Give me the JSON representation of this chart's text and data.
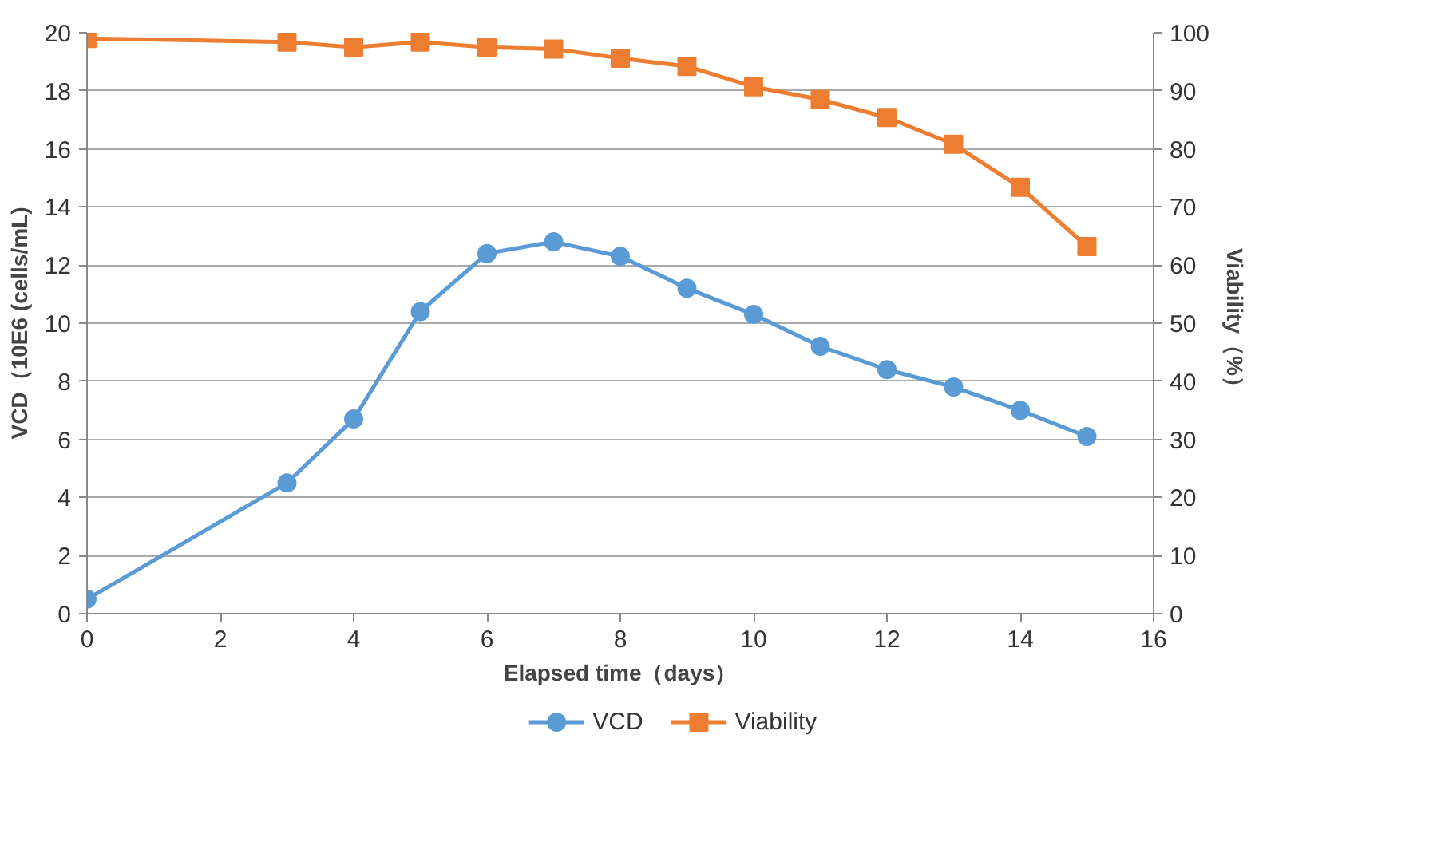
{
  "chart_data": {
    "type": "line",
    "xlabel": "Elapsed time（days）",
    "ylabel": "VCD（10E6 (cells/mL)",
    "y2label": "Viability（%）",
    "xlim": [
      0,
      16
    ],
    "xticks": [
      0,
      2,
      4,
      6,
      8,
      10,
      12,
      14,
      16
    ],
    "ylim": [
      0,
      20
    ],
    "yticks": [
      0,
      2,
      4,
      6,
      8,
      10,
      12,
      14,
      16,
      18,
      20
    ],
    "y2lim": [
      0,
      100
    ],
    "y2ticks": [
      0,
      10,
      20,
      30,
      40,
      50,
      60,
      70,
      80,
      90,
      100
    ],
    "grid": "y",
    "legend": "bottom",
    "series": [
      {
        "name": "VCD",
        "color": "#5b9bd5",
        "marker": "circle",
        "x": [
          0,
          3,
          4,
          5,
          6,
          7,
          8,
          9,
          10,
          11,
          12,
          13,
          14,
          15
        ],
        "values": [
          0.5,
          4.5,
          6.7,
          10.4,
          12.4,
          12.8,
          12.3,
          11.2,
          10.3,
          9.2,
          8.4,
          7.8,
          7.0,
          6.1
        ]
      },
      {
        "name": "Viability",
        "color": "#ed7d31",
        "marker": "square",
        "axis": "y2",
        "x": [
          0,
          3,
          4,
          5,
          6,
          7,
          8,
          9,
          10,
          11,
          12,
          13,
          14,
          15
        ],
        "values": [
          99,
          98.4,
          97.5,
          98.4,
          97.5,
          97.2,
          95.6,
          94.2,
          90.7,
          88.5,
          85.4,
          80.8,
          73.4,
          63.2
        ]
      }
    ]
  }
}
